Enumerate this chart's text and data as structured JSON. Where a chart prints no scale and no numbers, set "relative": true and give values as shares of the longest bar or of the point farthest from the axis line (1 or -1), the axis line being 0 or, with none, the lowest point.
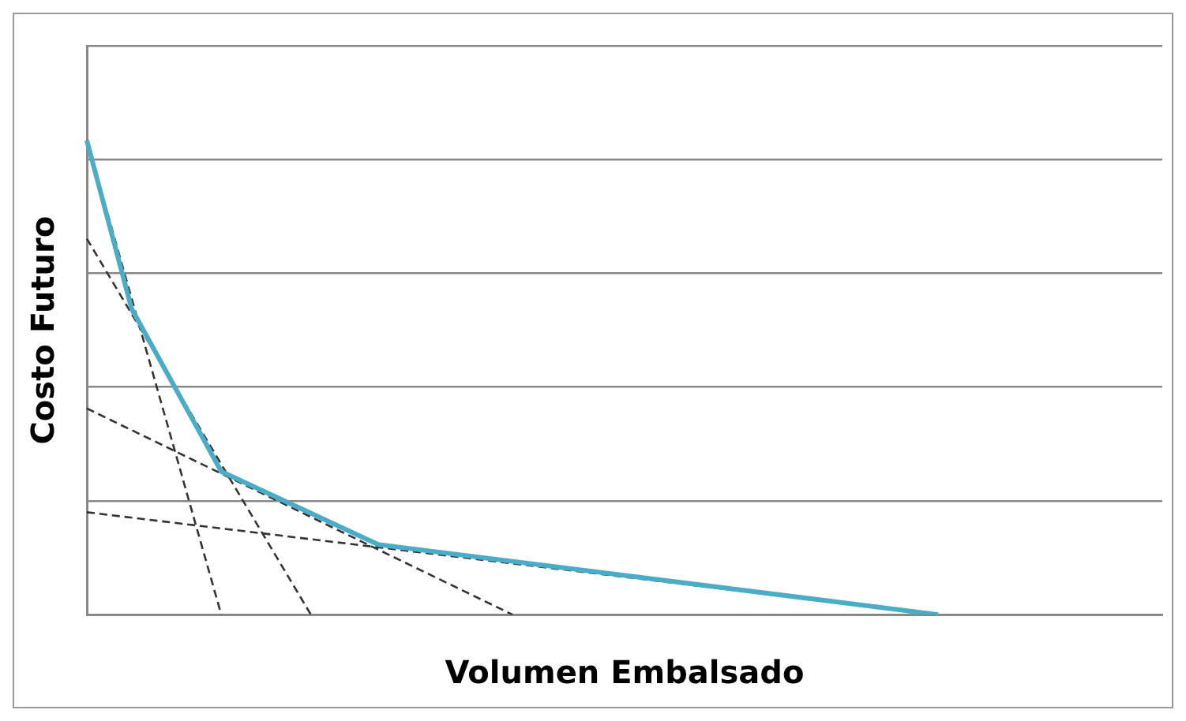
{
  "chart_data": {
    "type": "line",
    "xlabel": "Volumen Embalsado",
    "ylabel": "Costo Futuro",
    "relative": true,
    "grid": "y",
    "marker": "none",
    "categories": [
      null,
      null,
      null,
      null,
      null,
      null,
      null,
      null,
      null,
      null,
      null,
      null,
      null,
      null,
      null,
      null,
      null,
      null,
      null,
      null,
      null,
      null,
      null,
      null,
      null,
      null,
      null,
      null,
      null,
      null,
      null,
      null,
      null,
      null,
      null,
      null,
      null,
      null,
      null,
      null,
      null,
      null,
      null,
      null,
      null,
      null,
      null,
      null,
      null
    ],
    "series": [
      {
        "color": "#4bacc6",
        "line_style": "solid",
        "values": [
          1,
          null,
          0.645,
          null,
          null,
          null,
          0.302,
          null,
          null,
          null,
          null,
          null,
          null,
          0.148,
          null,
          null,
          null,
          null,
          null,
          null,
          null,
          null,
          null,
          null,
          null,
          null,
          null,
          null,
          null,
          null,
          null,
          null,
          null,
          null,
          null,
          null,
          null,
          null,
          0,
          null,
          null,
          null,
          null,
          null,
          null,
          null,
          null,
          null,
          null
        ]
      },
      {
        "color": "#333333",
        "line_style": "dashed",
        "values": [
          1,
          null,
          null,
          null,
          null,
          null,
          0,
          null,
          null,
          null,
          null,
          null,
          null,
          null,
          null,
          null,
          null,
          null,
          null,
          null,
          null,
          null,
          null,
          null,
          null,
          null,
          null,
          null,
          null,
          null,
          null,
          null,
          null,
          null,
          null,
          null,
          null,
          null,
          null,
          null,
          null,
          null,
          null,
          null,
          null,
          null,
          null,
          null,
          null
        ]
      },
      {
        "color": "#333333",
        "line_style": "dashed",
        "values": [
          0.793,
          null,
          null,
          null,
          null,
          null,
          null,
          null,
          null,
          null,
          0,
          null,
          null,
          null,
          null,
          null,
          null,
          null,
          null,
          null,
          null,
          null,
          null,
          null,
          null,
          null,
          null,
          null,
          null,
          null,
          null,
          null,
          null,
          null,
          null,
          null,
          null,
          null,
          null,
          null,
          null,
          null,
          null,
          null,
          null,
          null,
          null,
          null,
          null
        ]
      },
      {
        "color": "#333333",
        "line_style": "dashed",
        "values": [
          0.435,
          null,
          null,
          null,
          null,
          null,
          null,
          null,
          null,
          null,
          null,
          null,
          null,
          null,
          null,
          null,
          null,
          null,
          null,
          0,
          null,
          null,
          null,
          null,
          null,
          null,
          null,
          null,
          null,
          null,
          null,
          null,
          null,
          null,
          null,
          null,
          null,
          null,
          null,
          null,
          null,
          null,
          null,
          null,
          null,
          null,
          null,
          null,
          null
        ]
      },
      {
        "color": "#333333",
        "line_style": "dashed",
        "values": [
          0.216,
          null,
          null,
          null,
          null,
          null,
          null,
          null,
          null,
          null,
          null,
          null,
          null,
          null,
          null,
          null,
          null,
          null,
          null,
          null,
          null,
          null,
          null,
          null,
          null,
          null,
          null,
          null,
          null,
          null,
          null,
          null,
          null,
          null,
          null,
          null,
          null,
          null,
          0,
          null,
          null,
          null,
          null,
          null,
          null,
          null,
          null,
          null,
          null
        ]
      }
    ]
  }
}
